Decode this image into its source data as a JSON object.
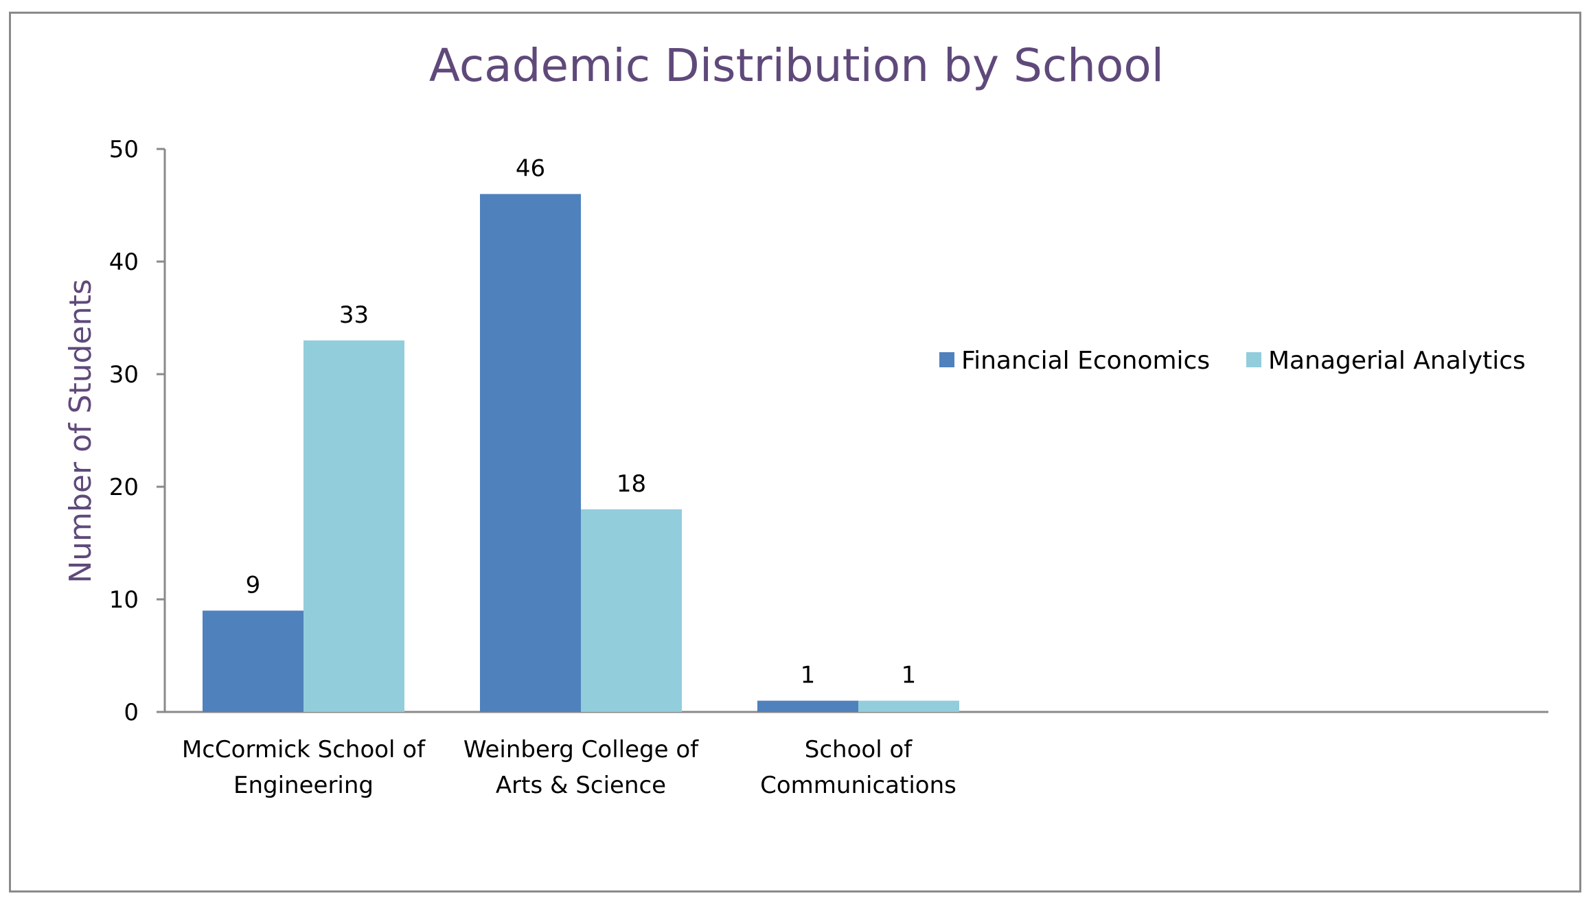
{
  "chart_data": {
    "type": "bar",
    "title": "Academic Distribution by School",
    "xlabel": "",
    "ylabel": "Number of Students",
    "ylim": [
      0,
      50
    ],
    "yticks": [
      0,
      10,
      20,
      30,
      40,
      50
    ],
    "categories": [
      [
        "McCormick School of",
        "Engineering"
      ],
      [
        "Weinberg College of",
        "Arts & Science"
      ],
      [
        "School of",
        "Communications"
      ]
    ],
    "series": [
      {
        "name": "Financial Economics",
        "values": [
          9,
          46,
          1
        ],
        "color": "#4F81BD"
      },
      {
        "name": "Managerial Analytics",
        "values": [
          33,
          18,
          1
        ],
        "color": "#92CDDC"
      }
    ],
    "data_labels": true,
    "grid": false,
    "legend": "right",
    "colors": {
      "title": "#5F497A",
      "axis_label": "#5F497A",
      "axis_line": "#8a8a8a",
      "text": "#000000"
    }
  }
}
